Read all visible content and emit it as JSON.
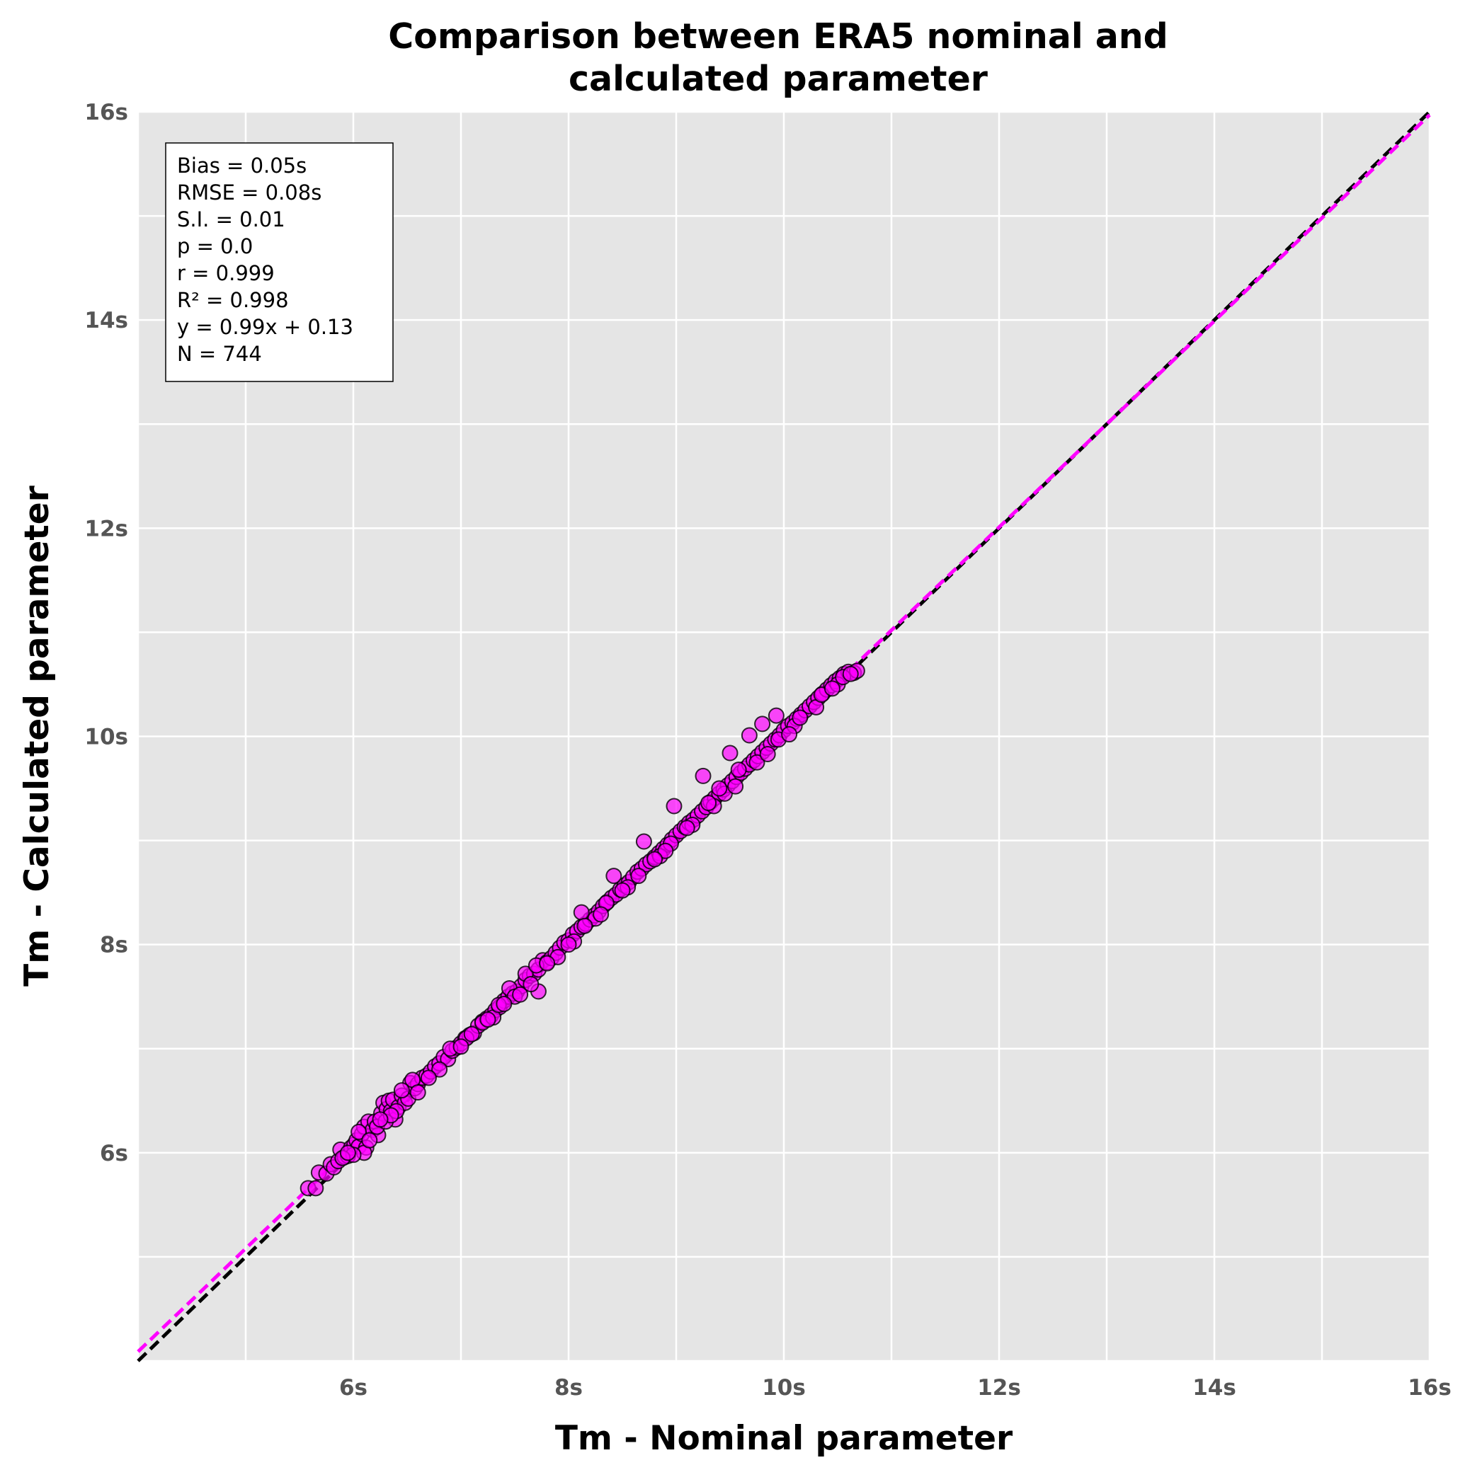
{
  "chart_data": {
    "type": "scatter",
    "title_lines": [
      "Comparison between ERA5 nominal and",
      "calculated parameter"
    ],
    "xlabel": "Tm - Nominal parameter",
    "ylabel": "Tm - Calculated parameter",
    "xlim": [
      4,
      16
    ],
    "ylim": [
      4,
      16
    ],
    "grid": true,
    "x_ticks": [
      {
        "value": 6,
        "label": "6s"
      },
      {
        "value": 8,
        "label": "8s"
      },
      {
        "value": 10,
        "label": "10s"
      },
      {
        "value": 12,
        "label": "12s"
      },
      {
        "value": 14,
        "label": "14s"
      },
      {
        "value": 16,
        "label": "16s"
      }
    ],
    "y_ticks": [
      {
        "value": 6,
        "label": "6s"
      },
      {
        "value": 8,
        "label": "8s"
      },
      {
        "value": 10,
        "label": "10s"
      },
      {
        "value": 12,
        "label": "12s"
      },
      {
        "value": 14,
        "label": "14s"
      },
      {
        "value": 16,
        "label": "16s"
      }
    ],
    "stats_lines": [
      "Bias = 0.05s",
      "RMSE = 0.08s",
      "S.I. = 0.01",
      "p = 0.0",
      "r = 0.999",
      "R² = 0.998",
      "y = 0.99x + 0.13",
      "N = 744"
    ],
    "identity_line": {
      "slope": 1.0,
      "intercept": 0.0,
      "color": "#000000",
      "style": "dashed"
    },
    "fit_line": {
      "slope": 0.99,
      "intercept": 0.13,
      "color": "#ff00ff",
      "style": "dashed"
    },
    "marker_color": "#ff00ff",
    "marker_edge_color": "#000000",
    "background_color": "#e5e5e5",
    "series": [
      {
        "points": [
          [
            5.58,
            5.66
          ],
          [
            5.65,
            5.66
          ],
          [
            5.68,
            5.81
          ],
          [
            5.75,
            5.8
          ],
          [
            5.79,
            5.89
          ],
          [
            5.82,
            5.86
          ],
          [
            5.86,
            5.92
          ],
          [
            5.88,
            6.03
          ],
          [
            5.92,
            5.96
          ],
          [
            5.95,
            5.97
          ],
          [
            5.98,
            6.05
          ],
          [
            6.01,
            6.08
          ],
          [
            6.03,
            6.12
          ],
          [
            6.05,
            6.06
          ],
          [
            6.08,
            6.18
          ],
          [
            6.1,
            6.25
          ],
          [
            6.12,
            6.05
          ],
          [
            6.14,
            6.3
          ],
          [
            6.18,
            6.22
          ],
          [
            6.2,
            6.3
          ],
          [
            6.23,
            6.17
          ],
          [
            6.26,
            6.38
          ],
          [
            6.28,
            6.48
          ],
          [
            6.31,
            6.42
          ],
          [
            6.33,
            6.5
          ],
          [
            6.35,
            6.4
          ],
          [
            6.37,
            6.51
          ],
          [
            6.39,
            6.32
          ],
          [
            6.42,
            6.44
          ],
          [
            6.45,
            6.55
          ],
          [
            6.48,
            6.48
          ],
          [
            6.51,
            6.52
          ],
          [
            6.53,
            6.67
          ],
          [
            6.57,
            6.62
          ],
          [
            6.6,
            6.66
          ],
          [
            6.64,
            6.72
          ],
          [
            6.68,
            6.74
          ],
          [
            6.72,
            6.78
          ],
          [
            6.76,
            6.83
          ],
          [
            6.8,
            6.86
          ],
          [
            6.84,
            6.92
          ],
          [
            6.88,
            6.9
          ],
          [
            6.92,
            6.98
          ],
          [
            6.96,
            7.01
          ],
          [
            7.0,
            7.05
          ],
          [
            7.04,
            7.1
          ],
          [
            7.08,
            7.13
          ],
          [
            7.12,
            7.15
          ],
          [
            7.16,
            7.22
          ],
          [
            7.2,
            7.26
          ],
          [
            7.24,
            7.29
          ],
          [
            7.28,
            7.32
          ],
          [
            7.32,
            7.37
          ],
          [
            7.36,
            7.4
          ],
          [
            7.4,
            7.46
          ],
          [
            7.44,
            7.5
          ],
          [
            7.48,
            7.53
          ],
          [
            7.52,
            7.55
          ],
          [
            7.56,
            7.6
          ],
          [
            7.6,
            7.66
          ],
          [
            7.64,
            7.7
          ],
          [
            7.68,
            7.72
          ],
          [
            7.72,
            7.76
          ],
          [
            7.76,
            7.85
          ],
          [
            7.8,
            7.83
          ],
          [
            7.84,
            7.87
          ],
          [
            7.88,
            7.92
          ],
          [
            7.92,
            7.97
          ],
          [
            7.96,
            8.02
          ],
          [
            8.0,
            8.04
          ],
          [
            8.04,
            8.1
          ],
          [
            8.08,
            8.13
          ],
          [
            8.12,
            8.17
          ],
          [
            8.16,
            8.2
          ],
          [
            8.2,
            8.24
          ],
          [
            8.24,
            8.28
          ],
          [
            8.28,
            8.32
          ],
          [
            8.32,
            8.37
          ],
          [
            8.36,
            8.41
          ],
          [
            8.4,
            8.45
          ],
          [
            8.44,
            8.48
          ],
          [
            8.48,
            8.53
          ],
          [
            8.52,
            8.57
          ],
          [
            8.56,
            8.6
          ],
          [
            8.6,
            8.65
          ],
          [
            8.64,
            8.7
          ],
          [
            8.68,
            8.73
          ],
          [
            8.72,
            8.77
          ],
          [
            8.76,
            8.8
          ],
          [
            8.8,
            8.84
          ],
          [
            8.84,
            8.88
          ],
          [
            8.88,
            8.92
          ],
          [
            8.92,
            8.96
          ],
          [
            8.96,
            9.01
          ],
          [
            9.0,
            9.05
          ],
          [
            9.04,
            9.09
          ],
          [
            9.08,
            9.13
          ],
          [
            9.12,
            9.17
          ],
          [
            9.16,
            9.2
          ],
          [
            9.2,
            9.24
          ],
          [
            9.24,
            9.28
          ],
          [
            9.28,
            9.32
          ],
          [
            9.32,
            9.37
          ],
          [
            9.36,
            9.41
          ],
          [
            9.4,
            9.45
          ],
          [
            9.44,
            9.49
          ],
          [
            9.48,
            9.53
          ],
          [
            9.52,
            9.57
          ],
          [
            9.56,
            9.61
          ],
          [
            9.6,
            9.65
          ],
          [
            9.64,
            9.69
          ],
          [
            9.68,
            9.73
          ],
          [
            9.72,
            9.77
          ],
          [
            9.76,
            9.81
          ],
          [
            9.8,
            9.85
          ],
          [
            9.84,
            9.89
          ],
          [
            9.88,
            9.93
          ],
          [
            9.92,
            9.97
          ],
          [
            9.96,
            10.01
          ],
          [
            10.0,
            10.06
          ],
          [
            10.04,
            10.1
          ],
          [
            10.08,
            10.13
          ],
          [
            10.12,
            10.17
          ],
          [
            10.16,
            10.21
          ],
          [
            10.2,
            10.25
          ],
          [
            10.24,
            10.29
          ],
          [
            10.28,
            10.33
          ],
          [
            10.32,
            10.37
          ],
          [
            10.36,
            10.41
          ],
          [
            10.4,
            10.45
          ],
          [
            10.44,
            10.49
          ],
          [
            10.48,
            10.53
          ],
          [
            10.52,
            10.56
          ],
          [
            10.56,
            10.6
          ],
          [
            10.6,
            10.62
          ],
          [
            10.65,
            10.61
          ],
          [
            10.68,
            10.63
          ],
          [
            8.7,
            8.99
          ],
          [
            8.98,
            9.33
          ],
          [
            9.25,
            9.62
          ],
          [
            9.5,
            9.84
          ],
          [
            9.68,
            10.01
          ],
          [
            9.8,
            10.12
          ],
          [
            9.93,
            10.2
          ],
          [
            8.12,
            8.31
          ],
          [
            8.42,
            8.66
          ],
          [
            7.6,
            7.72
          ],
          [
            7.72,
            7.55
          ],
          [
            7.45,
            7.58
          ],
          [
            7.2,
            7.25
          ],
          [
            6.55,
            6.7
          ],
          [
            6.9,
            7.0
          ],
          [
            7.05,
            7.1
          ],
          [
            7.3,
            7.3
          ],
          [
            7.5,
            7.5
          ],
          [
            7.7,
            7.8
          ],
          [
            8.05,
            8.03
          ],
          [
            8.25,
            8.25
          ],
          [
            8.55,
            8.55
          ],
          [
            8.85,
            8.85
          ],
          [
            9.15,
            9.15
          ],
          [
            9.45,
            9.45
          ],
          [
            9.75,
            9.75
          ],
          [
            9.95,
            9.97
          ],
          [
            10.1,
            10.1
          ],
          [
            10.3,
            10.28
          ],
          [
            10.5,
            10.5
          ],
          [
            6.1,
            6.0
          ],
          [
            6.22,
            6.25
          ],
          [
            6.3,
            6.3
          ],
          [
            6.4,
            6.4
          ],
          [
            6.45,
            6.6
          ],
          [
            6.0,
            5.98
          ],
          [
            5.9,
            5.95
          ],
          [
            6.05,
            6.2
          ],
          [
            7.1,
            7.14
          ],
          [
            7.25,
            7.28
          ],
          [
            7.35,
            7.42
          ],
          [
            7.55,
            7.52
          ],
          [
            7.65,
            7.62
          ],
          [
            7.9,
            7.88
          ],
          [
            8.15,
            8.18
          ],
          [
            8.35,
            8.4
          ],
          [
            8.65,
            8.66
          ],
          [
            8.95,
            8.97
          ],
          [
            9.35,
            9.33
          ],
          [
            9.55,
            9.52
          ],
          [
            9.85,
            9.83
          ],
          [
            10.05,
            10.02
          ],
          [
            10.15,
            10.18
          ],
          [
            10.35,
            10.4
          ],
          [
            10.45,
            10.46
          ],
          [
            10.55,
            10.57
          ],
          [
            10.62,
            10.6
          ],
          [
            9.58,
            9.68
          ],
          [
            9.4,
            9.5
          ],
          [
            9.3,
            9.36
          ],
          [
            9.1,
            9.12
          ],
          [
            8.9,
            8.9
          ],
          [
            8.8,
            8.82
          ],
          [
            8.5,
            8.52
          ],
          [
            8.3,
            8.29
          ],
          [
            8.0,
            8.0
          ],
          [
            7.8,
            7.82
          ],
          [
            7.4,
            7.43
          ],
          [
            7.0,
            7.02
          ],
          [
            6.8,
            6.8
          ],
          [
            6.7,
            6.72
          ],
          [
            6.6,
            6.58
          ],
          [
            6.35,
            6.36
          ],
          [
            6.25,
            6.32
          ],
          [
            6.15,
            6.12
          ],
          [
            5.95,
            6.0
          ]
        ]
      }
    ]
  }
}
